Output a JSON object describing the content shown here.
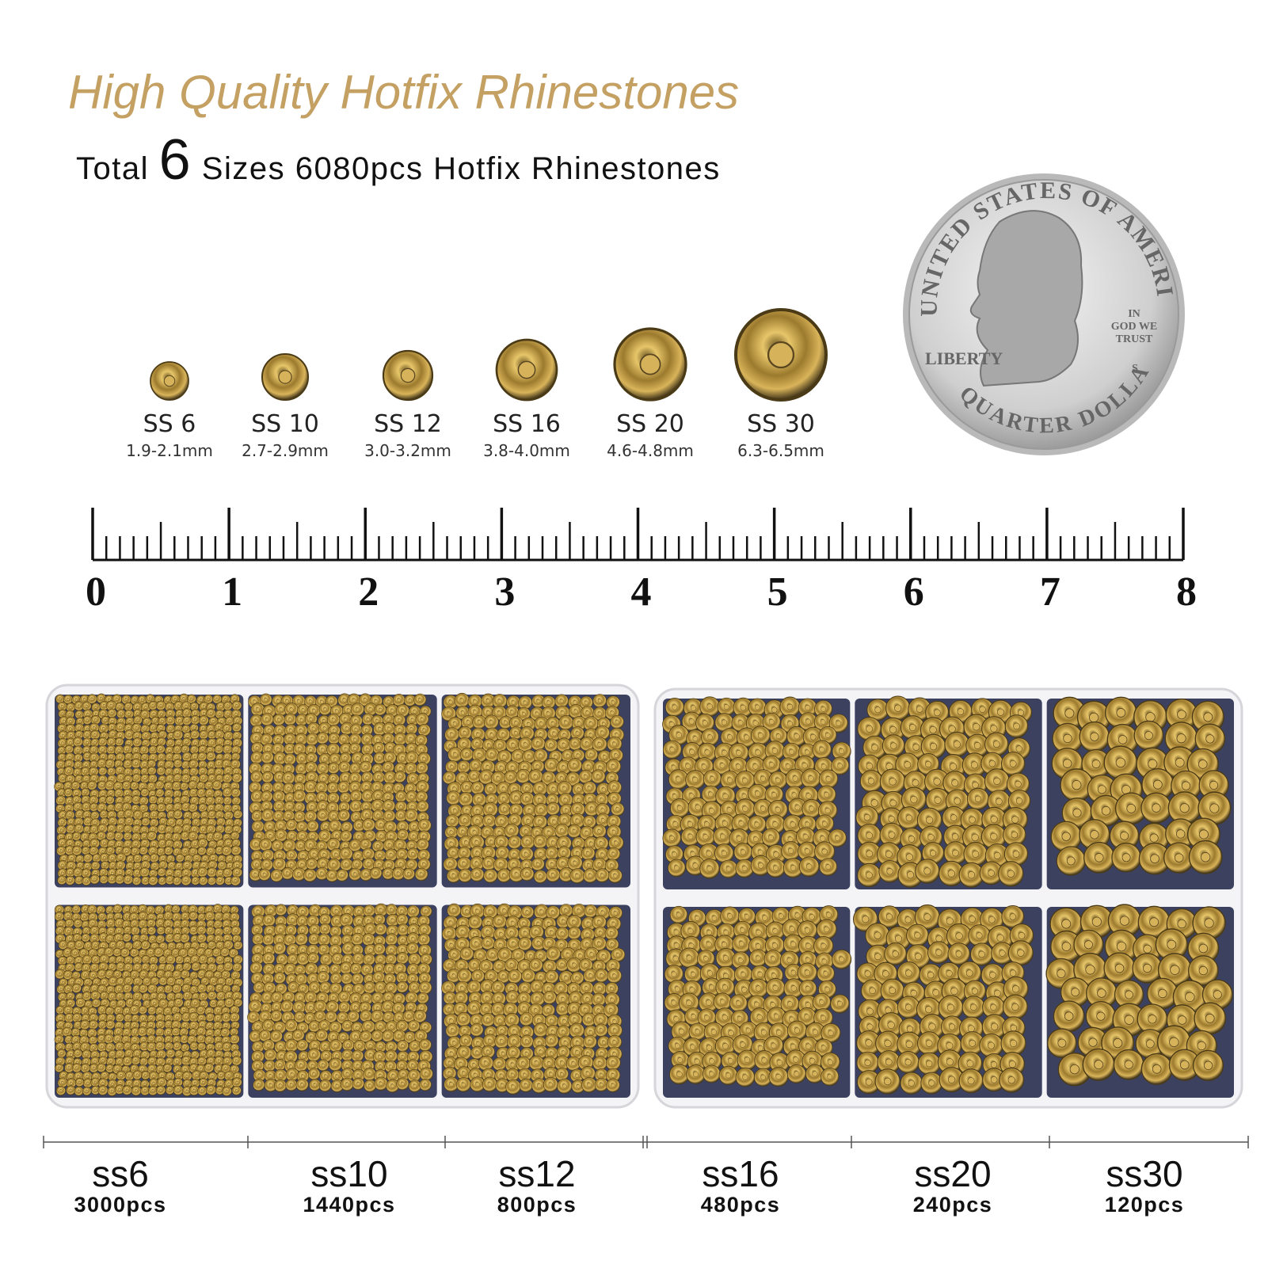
{
  "header": {
    "title": "High Quality Hotfix Rhinestones",
    "subtitle_lead": "Total",
    "subtitle_number": "6",
    "subtitle_rest": "Sizes 6080pcs Hotfix Rhinestones"
  },
  "sizes": [
    {
      "label": "SS 6",
      "range": "1.9-2.1mm"
    },
    {
      "label": "SS 10",
      "range": "2.7-2.9mm"
    },
    {
      "label": "SS 12",
      "range": "3.0-3.2mm"
    },
    {
      "label": "SS 16",
      "range": "3.8-4.0mm"
    },
    {
      "label": "SS 20",
      "range": "4.6-4.8mm"
    },
    {
      "label": "SS 30",
      "range": "6.3-6.5mm"
    }
  ],
  "coin": {
    "top_text": "UNITED STATES OF AMERICA",
    "liberty": "LIBERTY",
    "motto": [
      "IN",
      "GOD WE",
      "TRUST"
    ],
    "mint": "S",
    "bottom_text": "QUARTER DOLLAR"
  },
  "ruler": {
    "labels": [
      "0",
      "1",
      "2",
      "3",
      "4",
      "5",
      "6",
      "7",
      "8"
    ]
  },
  "compartments": [
    {
      "name": "ss6",
      "count": "3000pcs"
    },
    {
      "name": "ss10",
      "count": "1440pcs"
    },
    {
      "name": "ss12",
      "count": "800pcs"
    },
    {
      "name": "ss16",
      "count": "480pcs"
    },
    {
      "name": "ss20",
      "count": "240pcs"
    },
    {
      "name": "ss30",
      "count": "120pcs"
    }
  ]
}
